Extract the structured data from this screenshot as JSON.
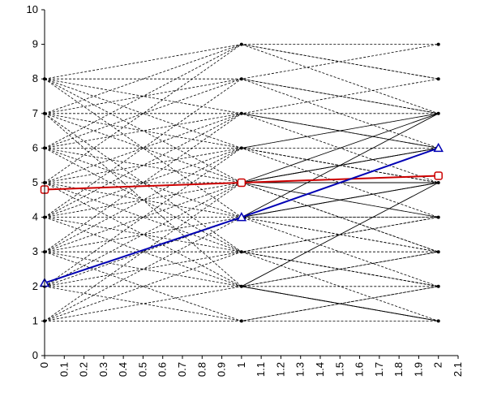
{
  "chart_data": {
    "type": "line",
    "title": "",
    "xlabel": "",
    "ylabel": "",
    "xlim": [
      0,
      2.1
    ],
    "ylim": [
      0,
      10
    ],
    "x_ticks": [
      "0",
      "0.1",
      "0.2",
      "0.3",
      "0.4",
      "0.5",
      "0.6",
      "0.7",
      "0.8",
      "0.9",
      "1",
      "1.1",
      "1.2",
      "1.3",
      "1.4",
      "1.5",
      "1.6",
      "1.7",
      "1.8",
      "1.9",
      "2",
      "2.1"
    ],
    "y_ticks": [
      "0",
      "1",
      "2",
      "3",
      "4",
      "5",
      "6",
      "7",
      "8",
      "9",
      "10"
    ],
    "grid": false,
    "legend": "none",
    "colors": {
      "background_lines": "#000000",
      "red_series": "#cc0000",
      "blue_series": "#0000b4"
    },
    "series": [
      {
        "values": [
          [
            0,
            4.8
          ],
          [
            1,
            5.0
          ],
          [
            2,
            5.2
          ]
        ],
        "color": "#cc0000",
        "marker": "square",
        "style": "solid"
      },
      {
        "values": [
          [
            0,
            2.1
          ],
          [
            1,
            4.0
          ],
          [
            2,
            6.0
          ]
        ],
        "color": "#0000b4",
        "marker": "triangle",
        "style": "solid"
      }
    ],
    "background_paths": {
      "style": "dashed",
      "color": "#000000",
      "x": [
        0,
        1,
        2
      ],
      "paths": [
        [
          8,
          9,
          9
        ],
        [
          8,
          8,
          7
        ],
        [
          8,
          7,
          6
        ],
        [
          8,
          6,
          5
        ],
        [
          8,
          5,
          4
        ],
        [
          8,
          4,
          3
        ],
        [
          7,
          9,
          8
        ],
        [
          7,
          8,
          6
        ],
        [
          7,
          7,
          5
        ],
        [
          7,
          6,
          4
        ],
        [
          7,
          5,
          3
        ],
        [
          7,
          3,
          2
        ],
        [
          7,
          2,
          1
        ],
        [
          6,
          9,
          7
        ],
        [
          6,
          8,
          9
        ],
        [
          6,
          7,
          6
        ],
        [
          6,
          6,
          5
        ],
        [
          6,
          5,
          4
        ],
        [
          6,
          4,
          2
        ],
        [
          6,
          3,
          1
        ],
        [
          5,
          9,
          8
        ],
        [
          5,
          7,
          7
        ],
        [
          5,
          6,
          6
        ],
        [
          5,
          5,
          5
        ],
        [
          5,
          4,
          3
        ],
        [
          5,
          3,
          2
        ],
        [
          5,
          2,
          1
        ],
        [
          4,
          8,
          7
        ],
        [
          4,
          7,
          6
        ],
        [
          4,
          6,
          5
        ],
        [
          4,
          5,
          3
        ],
        [
          4,
          4,
          4
        ],
        [
          4,
          3,
          2
        ],
        [
          4,
          2,
          1
        ],
        [
          3,
          7,
          8
        ],
        [
          3,
          6,
          7
        ],
        [
          3,
          5,
          6
        ],
        [
          3,
          4,
          4
        ],
        [
          3,
          3,
          3
        ],
        [
          3,
          2,
          2
        ],
        [
          3,
          1,
          1
        ],
        [
          2,
          6,
          7
        ],
        [
          2,
          5,
          6
        ],
        [
          2,
          4,
          5
        ],
        [
          2,
          3,
          4
        ],
        [
          2,
          2,
          3
        ],
        [
          2,
          1,
          2
        ],
        [
          1,
          5,
          6
        ],
        [
          1,
          4,
          5
        ],
        [
          1,
          3,
          4
        ],
        [
          1,
          2,
          3
        ],
        [
          1,
          1,
          2
        ]
      ]
    },
    "solid_paths": {
      "style": "solid",
      "color": "#000000",
      "segments": [
        [
          [
            1,
            5
          ],
          [
            2,
            7
          ]
        ],
        [
          [
            1,
            5
          ],
          [
            2,
            6
          ]
        ],
        [
          [
            1,
            5
          ],
          [
            2,
            5
          ]
        ],
        [
          [
            1,
            4
          ],
          [
            2,
            5
          ]
        ],
        [
          [
            1,
            4
          ],
          [
            2,
            7
          ]
        ],
        [
          [
            1,
            2
          ],
          [
            2,
            1
          ]
        ],
        [
          [
            1,
            2
          ],
          [
            2,
            5
          ]
        ]
      ]
    },
    "points": [
      [
        0,
        8
      ],
      [
        0,
        7
      ],
      [
        0,
        6
      ],
      [
        0,
        5
      ],
      [
        0,
        4
      ],
      [
        0,
        3
      ],
      [
        0,
        2
      ],
      [
        0,
        1
      ],
      [
        1,
        9
      ],
      [
        1,
        8
      ],
      [
        1,
        7
      ],
      [
        1,
        6
      ],
      [
        1,
        5
      ],
      [
        1,
        4
      ],
      [
        1,
        3
      ],
      [
        1,
        2
      ],
      [
        1,
        1
      ],
      [
        2,
        9
      ],
      [
        2,
        8
      ],
      [
        2,
        7
      ],
      [
        2,
        6
      ],
      [
        2,
        5
      ],
      [
        2,
        4
      ],
      [
        2,
        3
      ],
      [
        2,
        2
      ],
      [
        2,
        1
      ]
    ]
  }
}
